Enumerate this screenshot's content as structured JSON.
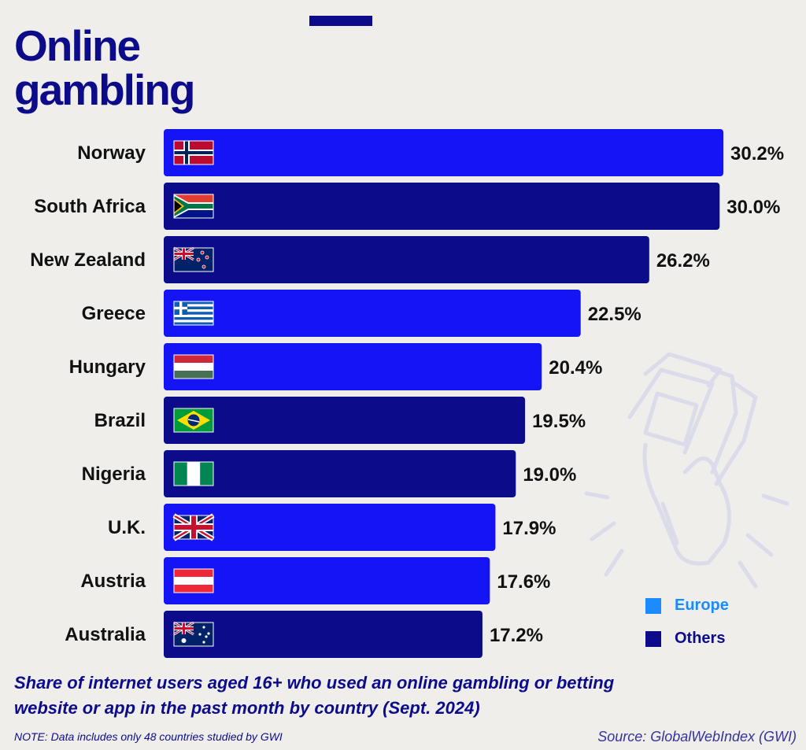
{
  "title": "Online gambling",
  "chart_data": {
    "type": "bar",
    "orientation": "horizontal",
    "categories": [
      "Norway",
      "South Africa",
      "New Zealand",
      "Greece",
      "Hungary",
      "Brazil",
      "Nigeria",
      "U.K.",
      "Austria",
      "Australia"
    ],
    "values": [
      30.2,
      30.0,
      26.2,
      22.5,
      20.4,
      19.5,
      19.0,
      17.9,
      17.6,
      17.2
    ],
    "value_labels": [
      "30.2%",
      "30.0%",
      "26.2%",
      "22.5%",
      "20.4%",
      "19.5%",
      "19.0%",
      "17.9%",
      "17.6%",
      "17.2%"
    ],
    "groups": [
      "Europe",
      "Others",
      "Others",
      "Europe",
      "Europe",
      "Others",
      "Others",
      "Europe",
      "Europe",
      "Others"
    ],
    "flags": [
      "norway-flag",
      "south-africa-flag",
      "new-zealand-flag",
      "greece-flag",
      "hungary-flag",
      "brazil-flag",
      "nigeria-flag",
      "uk-flag",
      "austria-flag",
      "australia-flag"
    ],
    "xlim": [
      0,
      30.2
    ],
    "legend": [
      {
        "name": "Europe",
        "color": "#1a8cff"
      },
      {
        "name": "Others",
        "color": "#0c0c8a"
      }
    ],
    "legend_position": "bottom-right",
    "bar_colors": {
      "Europe": "#1414f5",
      "Others": "#0c0c8a"
    },
    "grid": false
  },
  "caption": "Share of internet users aged 16+ who used an online gambling or betting website or app in the past month by country (Sept. 2024)",
  "note": "NOTE: Data includes only 48 countries studied by GWI",
  "source": "Source: GlobalWebIndex (GWI)",
  "decoration": "hand-holding-money-icon"
}
